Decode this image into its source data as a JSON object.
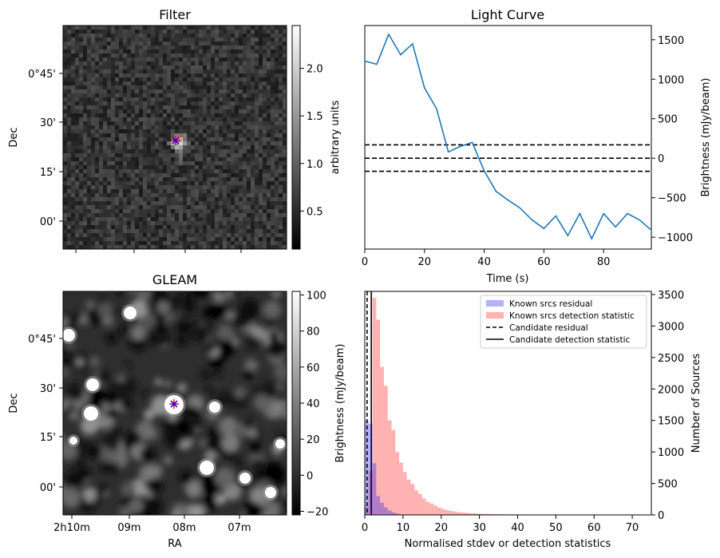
{
  "chart_data": [
    {
      "type": "heatmap",
      "title": "Filter",
      "xlabel": "",
      "ylabel": "Dec",
      "dec_ticks": [
        "0°45'",
        "30'",
        "15'",
        "00'"
      ],
      "colorbar": {
        "label": "arbitrary units",
        "range": [
          0.1,
          2.45
        ],
        "ticks": [
          0.5,
          1.0,
          1.5,
          2.0
        ]
      },
      "markers": [
        "red +",
        "blue x"
      ]
    },
    {
      "type": "line",
      "title": "Light Curve",
      "xlabel": "Time (s)",
      "ylabel": "Brightness (mJy/beam)",
      "xlim": [
        0,
        96
      ],
      "ylim": [
        -1150,
        1680
      ],
      "xticks": [
        0,
        20,
        40,
        60,
        80
      ],
      "yticks": [
        -1000,
        -500,
        0,
        500,
        1000,
        1500
      ],
      "series": [
        {
          "x": [
            0,
            4,
            8,
            12,
            16,
            20,
            24,
            28,
            32,
            36,
            40,
            44,
            48,
            52,
            56,
            60,
            64,
            68,
            72,
            76,
            80,
            84,
            88,
            92,
            96
          ],
          "values": [
            1230,
            1190,
            1570,
            1310,
            1450,
            890,
            630,
            80,
            150,
            200,
            -160,
            -420,
            -530,
            -630,
            -780,
            -890,
            -730,
            -980,
            -700,
            -1020,
            -700,
            -870,
            -700,
            -780,
            -910
          ]
        }
      ],
      "hlines": [
        {
          "y": 170,
          "style": "dashed"
        },
        {
          "y": 0,
          "style": "dashed"
        },
        {
          "y": -165,
          "style": "dashed"
        }
      ]
    },
    {
      "type": "heatmap",
      "title": "GLEAM",
      "xlabel": "RA",
      "ylabel": "Dec",
      "ra_ticks": [
        "2h10m",
        "09m",
        "08m",
        "07m"
      ],
      "dec_ticks": [
        "0°45'",
        "30'",
        "15'",
        "00'"
      ],
      "colorbar": {
        "label": "Brightness (mJy/beam)",
        "range": [
          -22,
          102
        ],
        "ticks": [
          -20,
          0,
          20,
          40,
          60,
          80,
          100
        ]
      },
      "markers": [
        "red +",
        "blue x"
      ]
    },
    {
      "type": "bar",
      "title": "",
      "xlabel": "Normalised stdev or detection statistics",
      "ylabel": "Number of Sources",
      "xlim": [
        0,
        75
      ],
      "ylim": [
        0,
        3550
      ],
      "xticks": [
        0,
        10,
        20,
        30,
        40,
        50,
        60,
        70
      ],
      "yticks": [
        0,
        500,
        1000,
        1500,
        2000,
        2500,
        3000,
        3500
      ],
      "bin_width": 1.0,
      "series": [
        {
          "name": "Known srcs residual",
          "color": "#0000ff",
          "bin_starts": [
            0,
            1,
            2,
            3,
            4,
            5,
            6,
            7,
            8
          ],
          "values": [
            1500,
            1450,
            820,
            300,
            190,
            120,
            70,
            40,
            20
          ]
        },
        {
          "name": "Known srcs detection statistic",
          "color": "#ff0000",
          "bin_starts": [
            0,
            1,
            2,
            3,
            4,
            5,
            6,
            7,
            8,
            9,
            10,
            11,
            12,
            13,
            14,
            15,
            16,
            17,
            18,
            19,
            20,
            21,
            22,
            23,
            24,
            25,
            26,
            27,
            28,
            29,
            30,
            31,
            32,
            33,
            34,
            35,
            36,
            37,
            38,
            39,
            40,
            41,
            42,
            43,
            44,
            45,
            46,
            47,
            48,
            49,
            50,
            51,
            52,
            53,
            54,
            55,
            56,
            57,
            58,
            59,
            60,
            61,
            62,
            63,
            64,
            65,
            66,
            67,
            68,
            69,
            70,
            71
          ],
          "values": [
            120,
            700,
            3450,
            3100,
            2350,
            2050,
            1500,
            1350,
            1000,
            830,
            680,
            560,
            490,
            390,
            330,
            260,
            210,
            180,
            150,
            115,
            95,
            80,
            65,
            55,
            45,
            40,
            35,
            28,
            25,
            20,
            18,
            15,
            14,
            12,
            11,
            10,
            9,
            8,
            8,
            7,
            7,
            6,
            6,
            5,
            5,
            5,
            4,
            4,
            4,
            3,
            3,
            3,
            3,
            3,
            2,
            2,
            2,
            2,
            2,
            2,
            2,
            2,
            2,
            2,
            2,
            2,
            2,
            2,
            2,
            2,
            2,
            2
          ]
        }
      ],
      "vlines": [
        {
          "name": "Candidate residual",
          "x": 0.6,
          "style": "dashed"
        },
        {
          "name": "Candidate detection statistic",
          "x": 1.7,
          "style": "solid"
        }
      ],
      "legend": "top-right"
    }
  ]
}
